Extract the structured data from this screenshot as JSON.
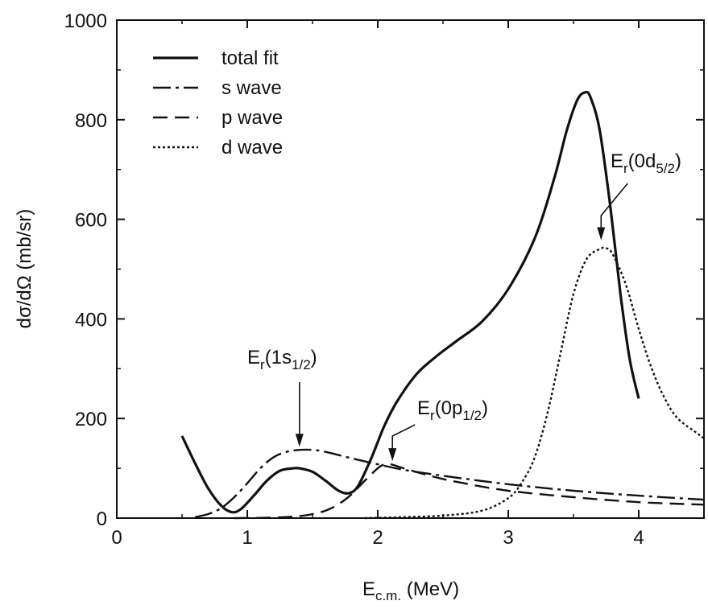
{
  "chart_data": {
    "type": "line",
    "title": "",
    "xlabel": {
      "main": "E",
      "sub": "c.m.",
      "rest": " (MeV)"
    },
    "ylabel": "dσ/dΩ (mb/sr)",
    "xlim": [
      0,
      4.5
    ],
    "ylim": [
      0,
      1000
    ],
    "grid": false,
    "legend_position": "top-left",
    "x_ticks": [
      "0",
      "1",
      "2",
      "3",
      "4"
    ],
    "x_tick_values": [
      0,
      1,
      2,
      3,
      4
    ],
    "y_ticks": [
      "0",
      "200",
      "400",
      "600",
      "800",
      "1000"
    ],
    "y_tick_values": [
      0,
      200,
      400,
      600,
      800,
      1000
    ],
    "series": [
      {
        "name": "total fit",
        "style": "solid",
        "x": [
          0.5,
          0.6,
          0.7,
          0.8,
          0.88,
          0.95,
          1.05,
          1.15,
          1.25,
          1.35,
          1.4,
          1.5,
          1.6,
          1.7,
          1.78,
          1.85,
          1.95,
          2.05,
          2.15,
          2.3,
          2.45,
          2.6,
          2.8,
          3.0,
          3.2,
          3.35,
          3.45,
          3.53,
          3.59,
          3.63,
          3.7,
          3.78,
          3.86,
          3.93,
          4.0
        ],
        "y": [
          165,
          110,
          60,
          25,
          12,
          18,
          45,
          75,
          95,
          100,
          100,
          93,
          75,
          55,
          50,
          65,
          120,
          185,
          235,
          290,
          325,
          355,
          395,
          460,
          560,
          680,
          780,
          840,
          855,
          845,
          780,
          630,
          450,
          320,
          240
        ]
      },
      {
        "name": "s wave",
        "style": "dash-dot",
        "x": [
          0.6,
          0.7,
          0.8,
          0.9,
          1.0,
          1.1,
          1.2,
          1.3,
          1.4,
          1.5,
          1.6,
          1.8,
          2.0,
          2.2,
          2.5,
          3.0,
          3.5,
          4.0,
          4.5
        ],
        "y": [
          2,
          8,
          20,
          42,
          70,
          100,
          122,
          133,
          137,
          137,
          133,
          120,
          108,
          97,
          85,
          68,
          55,
          45,
          37
        ]
      },
      {
        "name": "p wave",
        "style": "dashed",
        "x": [
          0.9,
          1.2,
          1.4,
          1.5,
          1.6,
          1.7,
          1.8,
          1.9,
          2.0,
          2.05,
          2.1,
          2.2,
          2.4,
          2.6,
          3.0,
          3.5,
          4.0,
          4.5
        ],
        "y": [
          0,
          1,
          4,
          8,
          15,
          28,
          48,
          75,
          100,
          108,
          108,
          100,
          85,
          73,
          55,
          42,
          32,
          27
        ]
      },
      {
        "name": "d wave",
        "style": "dotted",
        "x": [
          1.9,
          2.2,
          2.5,
          2.8,
          3.0,
          3.1,
          3.2,
          3.3,
          3.4,
          3.5,
          3.6,
          3.7,
          3.75,
          3.8,
          3.9,
          4.0,
          4.1,
          4.2,
          4.3,
          4.45,
          4.5
        ],
        "y": [
          0,
          2,
          5,
          15,
          40,
          70,
          120,
          210,
          330,
          450,
          520,
          540,
          542,
          530,
          470,
          380,
          300,
          240,
          200,
          170,
          160
        ]
      }
    ],
    "annotations": [
      {
        "main": "E",
        "sub1": "r",
        "mid": "(1s",
        "sub2": "1/2",
        "end": ")",
        "target_x": 1.4,
        "target_y": 137
      },
      {
        "main": "E",
        "sub1": "r",
        "mid": "(0p",
        "sub2": "1/2",
        "end": ")",
        "target_x": 2.1,
        "target_y": 108
      },
      {
        "main": "E",
        "sub1": "r",
        "mid": "(0d",
        "sub2": "5/2",
        "end": ")",
        "target_x": 3.73,
        "target_y": 542
      }
    ]
  }
}
